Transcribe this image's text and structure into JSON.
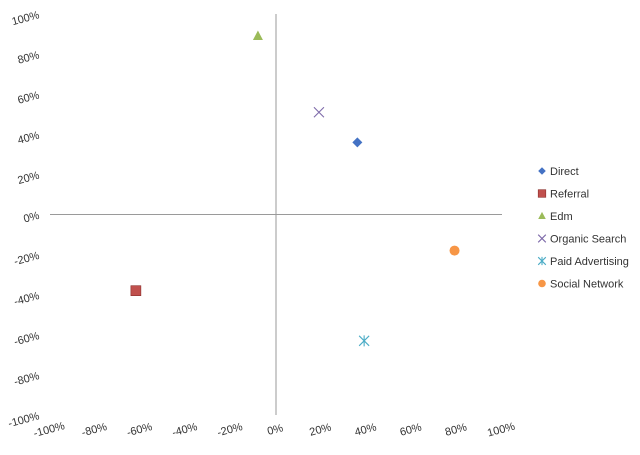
{
  "chart_data": {
    "type": "scatter",
    "title": "",
    "xlabel": "",
    "ylabel": "",
    "xlim": [
      -1,
      1
    ],
    "ylim": [
      -1,
      1
    ],
    "x_ticks": [
      "-100%",
      "-80%",
      "-60%",
      "-40%",
      "-20%",
      "0%",
      "20%",
      "40%",
      "60%",
      "80%",
      "100%"
    ],
    "y_ticks": [
      "100%",
      "80%",
      "60%",
      "40%",
      "20%",
      "0%",
      "-20%",
      "-40%",
      "-60%",
      "-80%",
      "-100%"
    ],
    "grid": false,
    "legend_position": "right",
    "series": [
      {
        "name": "Direct",
        "x": 0.36,
        "y": 0.36,
        "marker": "diamond",
        "color": "#4472C4"
      },
      {
        "name": "Referral",
        "x": -0.62,
        "y": -0.38,
        "marker": "square",
        "color": "#C0504D"
      },
      {
        "name": "Edm",
        "x": -0.08,
        "y": 0.89,
        "marker": "triangle",
        "color": "#9BBB59"
      },
      {
        "name": "Organic Search",
        "x": 0.19,
        "y": 0.51,
        "marker": "x",
        "color": "#7E6BAA"
      },
      {
        "name": "Paid Advertising",
        "x": 0.39,
        "y": -0.63,
        "marker": "star",
        "color": "#4BACC6"
      },
      {
        "name": "Social Network",
        "x": 0.79,
        "y": -0.18,
        "marker": "circle",
        "color": "#F79646"
      }
    ]
  }
}
